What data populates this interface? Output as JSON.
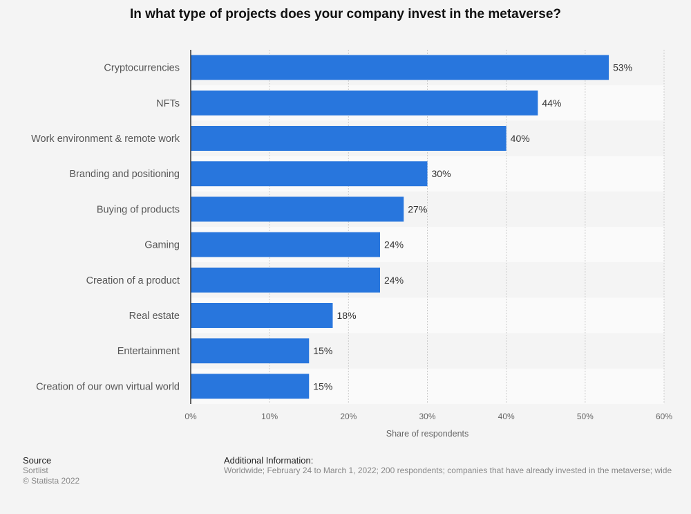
{
  "chart_data": {
    "type": "bar",
    "orientation": "horizontal",
    "title": "In what type of projects does your company invest in the metaverse?",
    "categories": [
      "Cryptocurrencies",
      "NFTs",
      "Work environment & remote work",
      "Branding and positioning",
      "Buying of products",
      "Gaming",
      "Creation of a product",
      "Real estate",
      "Entertainment",
      "Creation of our own virtual world"
    ],
    "values": [
      53,
      44,
      40,
      30,
      27,
      24,
      24,
      18,
      15,
      15
    ],
    "value_labels": [
      "53%",
      "44%",
      "40%",
      "30%",
      "27%",
      "24%",
      "24%",
      "18%",
      "15%",
      "15%"
    ],
    "xlabel": "Share of respondents",
    "ylabel": "",
    "xlim": [
      0,
      60
    ],
    "ticks": [
      0,
      10,
      20,
      30,
      40,
      50,
      60
    ],
    "tick_labels": [
      "0%",
      "10%",
      "20%",
      "30%",
      "40%",
      "50%",
      "60%"
    ],
    "grid": true,
    "bar_color": "#2876dd",
    "legend": "none"
  },
  "footer": {
    "source_heading": "Source",
    "source_name": "Sortlist",
    "copyright": "© Statista 2022",
    "info_heading": "Additional Information:",
    "info_text": "Worldwide; February 24 to March 1, 2022; 200 respondents; companies that have already invested in the metaverse; wide"
  }
}
